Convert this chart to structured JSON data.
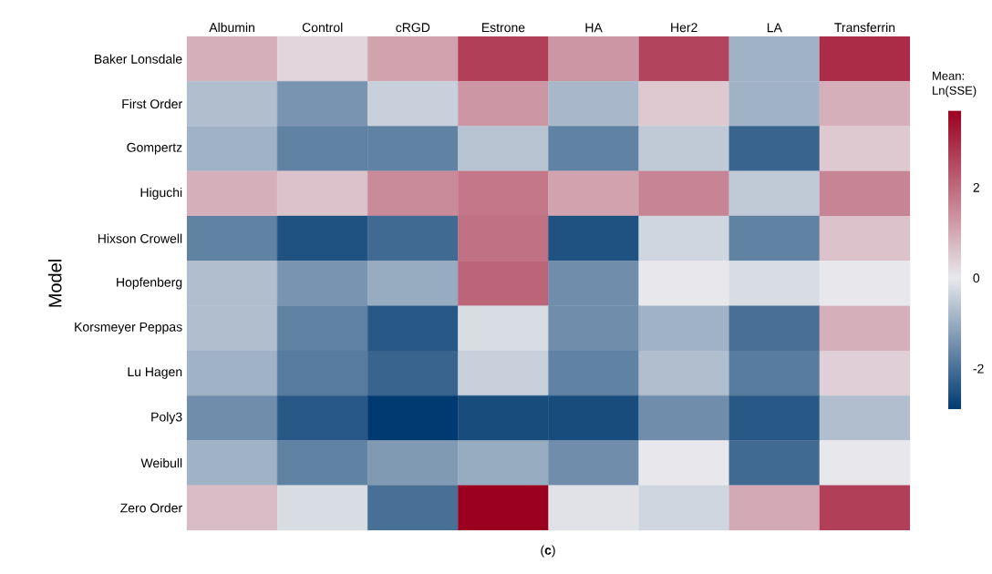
{
  "chart_data": {
    "type": "heatmap",
    "ylabel": "Model",
    "clabel": "Mean: Ln(SSE)",
    "annotations": [
      "(**c**)"
    ],
    "categories": [
      "Albumin",
      "Control",
      "cRGD",
      "Estrone",
      "HA",
      "Her2",
      "LA",
      "Transferrin"
    ],
    "y_categories": [
      "Baker Lonsdale",
      "First Order",
      "Gompertz",
      "Higuchi",
      "Hixson Crowell",
      "Hopfenberg",
      "Korsmeyer Peppas",
      "Lu Hagen",
      "Poly3",
      "Weibull",
      "Zero Order"
    ],
    "cells": [
      [
        0.9,
        0.3,
        1.1,
        2.7,
        1.3,
        2.6,
        -0.9,
        3.0
      ],
      [
        -0.7,
        -1.4,
        -0.4,
        1.3,
        -0.8,
        0.5,
        -0.9,
        0.9
      ],
      [
        -0.9,
        -1.7,
        -1.7,
        -0.6,
        -1.7,
        -0.5,
        -2.2,
        0.5
      ],
      [
        0.9,
        0.6,
        1.5,
        1.8,
        1.1,
        1.6,
        -0.5,
        1.6
      ],
      [
        -1.7,
        -2.5,
        -2.1,
        1.9,
        -2.5,
        -0.3,
        -1.7,
        0.6
      ],
      [
        -0.7,
        -1.4,
        -1.0,
        2.1,
        -1.5,
        0.0,
        -0.2,
        0.0
      ],
      [
        -0.7,
        -1.7,
        -2.4,
        -0.2,
        -1.5,
        -0.9,
        -2.0,
        0.9
      ],
      [
        -0.9,
        -1.8,
        -2.2,
        -0.4,
        -1.7,
        -0.7,
        -1.8,
        0.4
      ],
      [
        -1.5,
        -2.4,
        -2.9,
        -2.6,
        -2.6,
        -1.5,
        -2.4,
        -0.7
      ],
      [
        -0.9,
        -1.7,
        -1.3,
        -1.0,
        -1.5,
        0.0,
        -2.1,
        0.0
      ],
      [
        0.7,
        -0.2,
        -2.0,
        3.7,
        -0.1,
        -0.3,
        1.0,
        2.7
      ]
    ],
    "clim": [
      -2.9,
      3.7
    ],
    "cticks": [
      -2,
      0,
      2
    ]
  }
}
